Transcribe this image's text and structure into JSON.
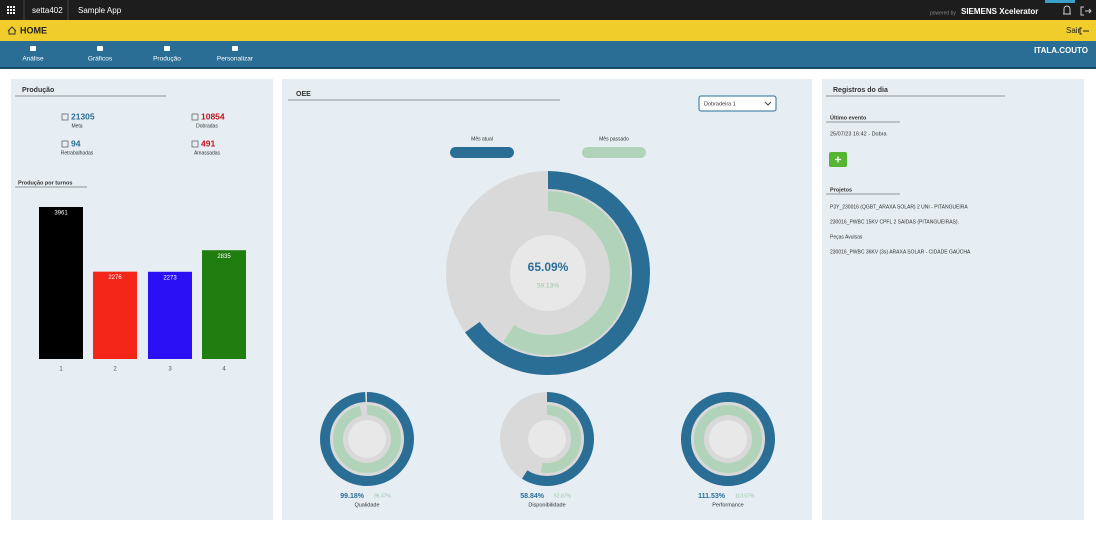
{
  "topbar": {
    "tenant": "setta402",
    "app": "Sample App",
    "powered": "powered by",
    "brand": "SIEMENS Xcelerator"
  },
  "header": {
    "title": "HOME",
    "logout": "Sair"
  },
  "nav": {
    "items": [
      "Análise",
      "Gráficos",
      "Produção",
      "Personalizar"
    ],
    "user": "ITALA.COUTO"
  },
  "production": {
    "title": "Produção",
    "kpis": [
      {
        "value": 21305,
        "label": "Meta",
        "color": "#2a6e96"
      },
      {
        "value": 10854,
        "label": "Dobradas",
        "color": "#c0141c"
      },
      {
        "value": 94,
        "label": "Retrabalhadas",
        "color": "#2a6e96"
      },
      {
        "value": 491,
        "label": "Amassadas",
        "color": "#c0141c"
      }
    ],
    "chart": {
      "type": "bar",
      "title": "Produção por turnos",
      "categories": [
        "1",
        "2",
        "3",
        "4"
      ],
      "values": [
        3961,
        2276,
        2273,
        2835
      ],
      "colors": [
        "#000000",
        "#f4261a",
        "#2b0ff5",
        "#1f7e0f"
      ]
    }
  },
  "oee": {
    "title": "OEE",
    "machine": "Dobradeira 1",
    "legend": [
      "Mês atual",
      "Mês passado"
    ],
    "colors": [
      "#2a6e96",
      "#b1d3b9"
    ],
    "total": {
      "type": "donut",
      "values": [
        65.09,
        59.13
      ],
      "value_labels": [
        "65.09%",
        "59.13%"
      ]
    },
    "components": [
      {
        "type": "donut",
        "name": "Qualidade",
        "values": [
          99.18,
          96.47
        ],
        "value_labels": [
          "99.18%",
          "96.47%"
        ]
      },
      {
        "type": "donut",
        "name": "Disponibilidade",
        "values": [
          58.84,
          52.87
        ],
        "value_labels": [
          "58.84%",
          "52.87%"
        ]
      },
      {
        "type": "donut",
        "name": "Performance",
        "values": [
          111.53,
          113.57
        ],
        "value_labels": [
          "111.53%",
          "113.57%"
        ]
      }
    ]
  },
  "records": {
    "title": "Registros do dia",
    "last_event_title": "Último evento",
    "last_event": "25/07/23 16:42 - Dobra",
    "projects_title": "Projetos",
    "projects": [
      "P3Y_230016 (QGBT_ARAXA SOLAR) 2 UNI - PITANGUEIRA",
      "230016_PWBC 15KV CPFL 2 SAIDAS (PITANGUEIRAS).",
      "Peças Avulsas",
      "230016_PWBC 36KV (3s) ARAXA SOLAR - CIDADE GAÚCHA"
    ]
  }
}
